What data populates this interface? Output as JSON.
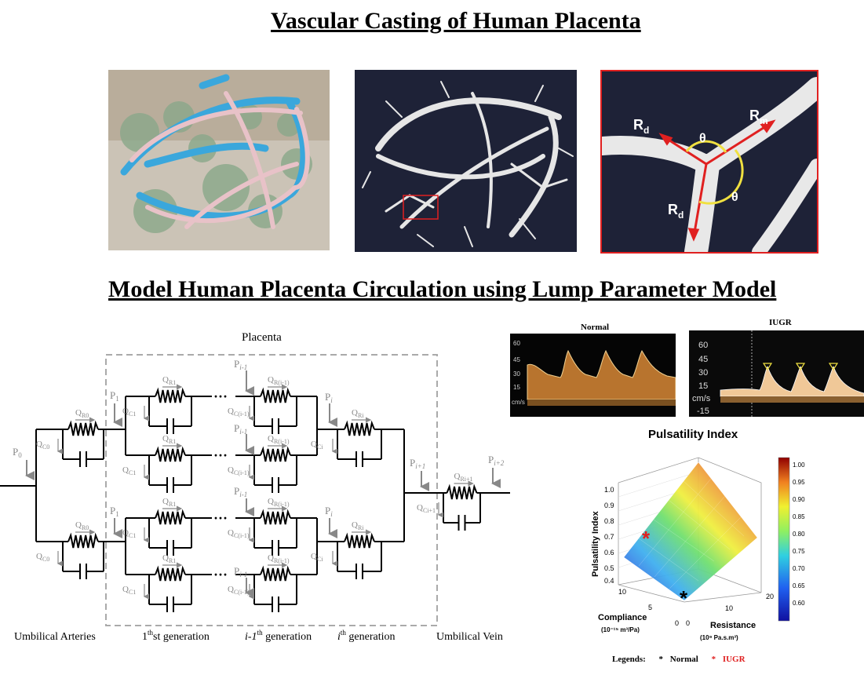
{
  "titles": {
    "top": "Vascular Casting of Human Placenta",
    "middle": "Model Human Placenta Circulation using Lump Parameter Model"
  },
  "zoom_panel": {
    "rd_top": "R",
    "rd_top_sub": "d",
    "rm": "R",
    "rm_sub": "m",
    "rd_bottom": "R",
    "rd_bottom_sub": "d",
    "theta1": "θ",
    "theta2": "θ"
  },
  "circuit": {
    "placenta": "Placenta",
    "p0": "P",
    "p0_sub": "0",
    "p1_top": "P",
    "p1_top_sub": "1",
    "p1_bot": "P",
    "p1_bot_sub": "1",
    "pi_minus1": "P",
    "pi_minus1_sub": "i-1",
    "pi": "P",
    "pi_sub": "i",
    "pi_plus1": "P",
    "pi_plus1_sub": "i+1",
    "pi_plus2": "P",
    "pi_plus2_sub": "i+2",
    "ellipsis": "···",
    "bottom_labels": {
      "umbilical_arteries": "Umbilical Arteries",
      "first_gen": "st generation",
      "first_gen_num": "1",
      "i1_gen_italic": "i-1",
      "i1_gen_sup": "th",
      "i1_gen_rest": " generation",
      "ith_italic": "i",
      "ith_sup": "th",
      "ith_rest": " generation",
      "umbilical_vein": "Umbilical Vein"
    },
    "components": {
      "qr0": "Q",
      "qr0_sub": "R0",
      "qc0": "Q",
      "qc0_sub": "C0",
      "qr1": "Q",
      "qr1_sub": "R1",
      "qc1": "Q",
      "qc1_sub": "C1",
      "qri1": "Q",
      "qri1_sub": "R(i-1)",
      "qci1": "Q",
      "qci1_sub": "C(i-1)",
      "qri": "Q",
      "qri_sub": "Ri",
      "qci": "Q",
      "qci_sub": "Ci",
      "qrip1": "Q",
      "qrip1_sub": "Ri+1",
      "qcip1": "Q",
      "qcip1_sub": "Ci+1"
    }
  },
  "doppler": {
    "normal_title": "Normal",
    "iugr_title": "IUGR",
    "normal_ticks": [
      "60",
      "45",
      "30",
      "15"
    ],
    "normal_unit": "cm/s",
    "iugr_ticks": [
      "60",
      "45",
      "30",
      "15"
    ],
    "iugr_unit": "cm/s",
    "iugr_neg": "-15"
  },
  "pulsatility": {
    "title": "Pulsatility Index",
    "zlabel": "Pulsatility Index",
    "z_ticks": [
      "1.0",
      "0.9",
      "0.8",
      "0.7",
      "0.6",
      "0.5",
      "0.4"
    ],
    "compliance_ticks": [
      "10",
      "5",
      "0"
    ],
    "resistance_ticks": [
      "0",
      "10",
      "20"
    ],
    "compliance_label": "Compliance",
    "compliance_unit": "(10⁻¹⁵ m³/Pa)",
    "resistance_label": "Resistance",
    "resistance_unit": "(10⁹ Pa.s.m³)",
    "colorbar_ticks": [
      "1.00",
      "0.95",
      "0.90",
      "0.85",
      "0.80",
      "0.75",
      "0.70",
      "0.65",
      "0.60"
    ],
    "legend_label": "Legends:",
    "legend_star": "*",
    "legend_normal": "Normal",
    "legend_iugr": "IUGR",
    "colors": {
      "normal": "#000000",
      "iugr": "#e02020"
    }
  }
}
